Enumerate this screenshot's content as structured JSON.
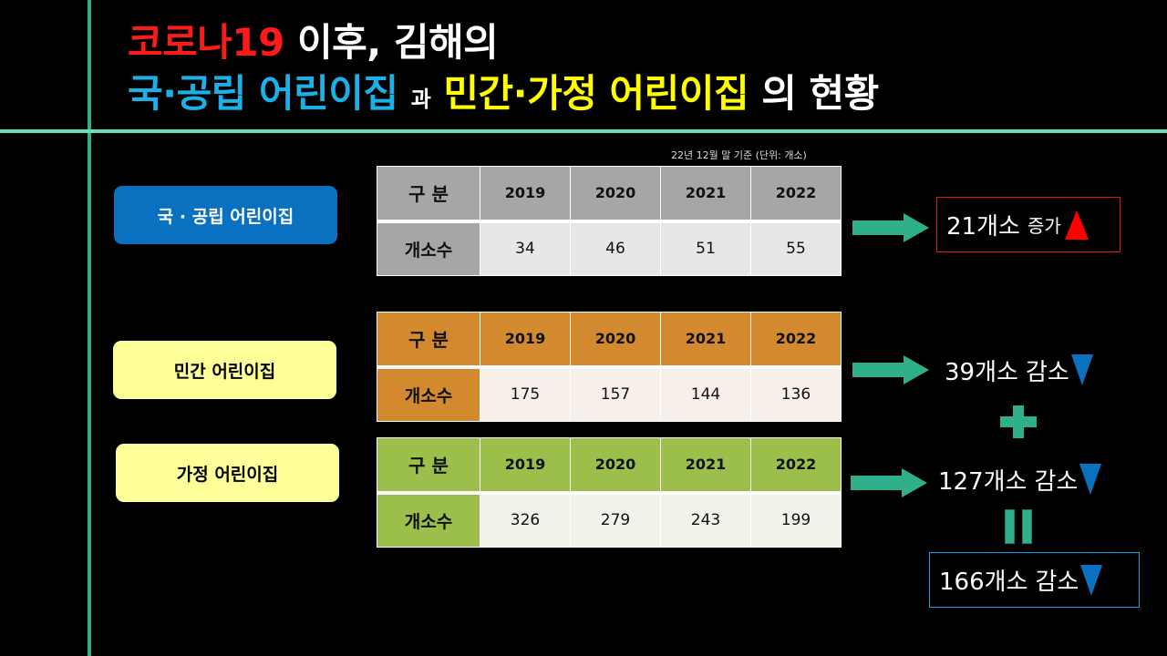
{
  "title": {
    "line1": [
      {
        "text": "코로나19",
        "color": "#ff1a1a"
      },
      {
        "text": " 이후, 김해의",
        "color": "#ffffff"
      }
    ],
    "line2": [
      {
        "text": "국·공립 어린이집",
        "color": "#1ab0e8"
      },
      {
        "text": "과",
        "color": "#ffffff"
      },
      {
        "text": "민간·가정 어린이집",
        "color": "#ffff00"
      },
      {
        "text": "의 현황",
        "color": "#ffffff"
      }
    ]
  },
  "note": "22년 12월 말 기준 (단위: 개소)",
  "categories": [
    {
      "label": "국 · 공립 어린이집",
      "color": "#0a70c0"
    },
    {
      "label": "민간 어린이집",
      "color": "#ffff99"
    },
    {
      "label": "가정 어린이집",
      "color": "#ffff99"
    }
  ],
  "tables": [
    {
      "name": "public",
      "header": [
        "구 분",
        "2019",
        "2020",
        "2021",
        "2022"
      ],
      "row_label": "개소수",
      "values": [
        "34",
        "46",
        "51",
        "55"
      ],
      "header_color": "#a6a6a6",
      "body_color": "#e7e7e7"
    },
    {
      "name": "private",
      "header": [
        "구 분",
        "2019",
        "2020",
        "2021",
        "2022"
      ],
      "row_label": "개소수",
      "values": [
        "175",
        "157",
        "144",
        "136"
      ],
      "header_color": "#d38a2f",
      "body_color": "#f7efea"
    },
    {
      "name": "home",
      "header": [
        "구 분",
        "2019",
        "2020",
        "2021",
        "2022"
      ],
      "row_label": "개소수",
      "values": [
        "326",
        "279",
        "243",
        "199"
      ],
      "header_color": "#9bbf4a",
      "body_color": "#eff3ea"
    }
  ],
  "results": [
    {
      "count": "21개소",
      "change": "증가",
      "direction": "up",
      "indicator_color": "#ff0000"
    },
    {
      "count": "39개소",
      "change": "감소",
      "direction": "down",
      "indicator_color": "#0a70c0"
    },
    {
      "count": "127개소",
      "change": "감소",
      "direction": "down",
      "indicator_color": "#0a70c0"
    },
    {
      "count": "166개소",
      "change": "감소",
      "direction": "down",
      "indicator_color": "#0a70c0"
    }
  ],
  "operators": {
    "plus": "+",
    "equals": "="
  },
  "accent_color": "#2fb08a"
}
